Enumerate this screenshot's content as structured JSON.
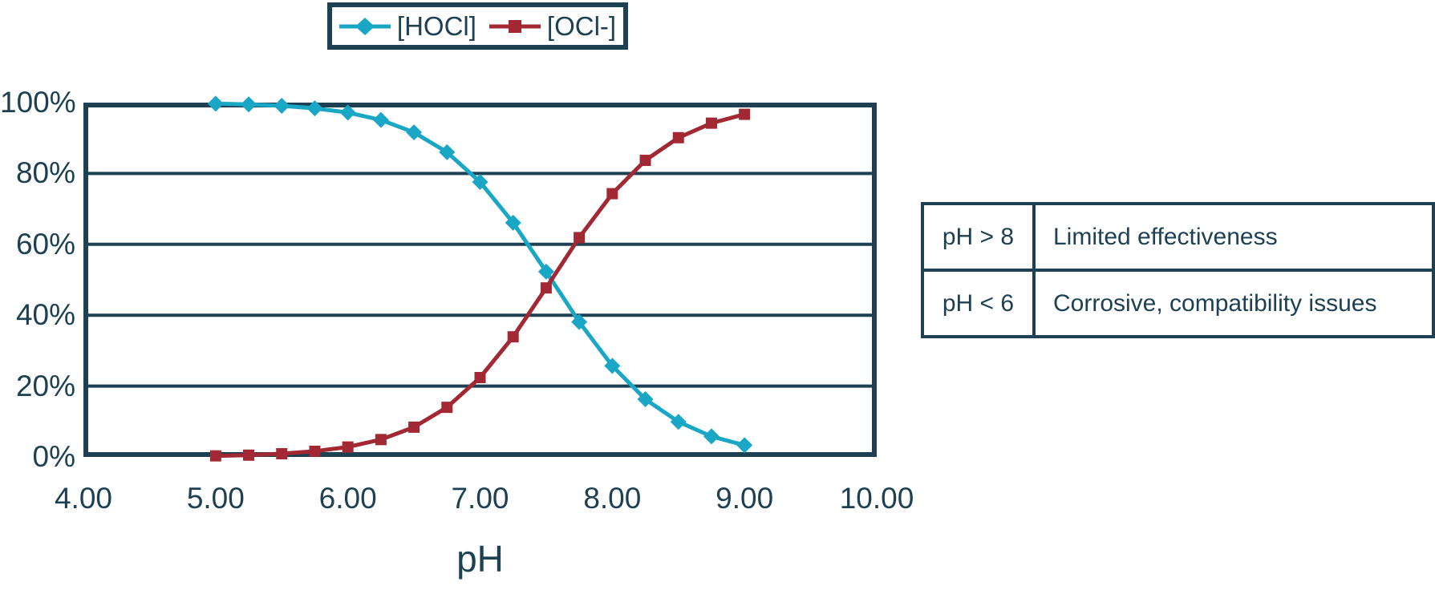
{
  "colors": {
    "navy": "#1d4152",
    "hocl": "#1aa7c6",
    "ocl": "#a22834",
    "background": "#ffffff"
  },
  "legend": {
    "items": [
      {
        "label": "[HOCl]",
        "marker": "diamond"
      },
      {
        "label": "[OCl-]",
        "marker": "square"
      }
    ]
  },
  "chart_data": {
    "type": "line",
    "title": "",
    "xlabel": "pH",
    "ylabel": "",
    "xlim": [
      4,
      10
    ],
    "ylim": [
      0,
      100
    ],
    "grid": "horizontal",
    "grid_lines": [
      20,
      40,
      60,
      80
    ],
    "legend_position": "top",
    "x": [
      5.0,
      5.25,
      5.5,
      5.75,
      6.0,
      6.25,
      6.5,
      6.75,
      7.0,
      7.25,
      7.5,
      7.75,
      8.0,
      8.25,
      8.5,
      8.75,
      9.0
    ],
    "series": [
      {
        "id": "hocl",
        "name": "[HOCl]",
        "marker": "diamond",
        "color": "#1aa7c6",
        "values": [
          99.7,
          99.5,
          99.1,
          98.4,
          97.2,
          95.1,
          91.6,
          86.0,
          77.6,
          66.1,
          52.3,
          38.1,
          25.7,
          16.3,
          9.9,
          5.8,
          3.3
        ]
      },
      {
        "id": "ocl",
        "name": "[OCl-]",
        "marker": "square",
        "color": "#a22834",
        "values": [
          0.3,
          0.5,
          0.9,
          1.6,
          2.8,
          4.9,
          8.4,
          14.0,
          22.4,
          33.9,
          47.7,
          61.9,
          74.3,
          83.7,
          90.1,
          94.2,
          96.7
        ]
      }
    ],
    "x_ticks": [
      {
        "label": "4.00",
        "value": 4
      },
      {
        "label": "5.00",
        "value": 5
      },
      {
        "label": "6.00",
        "value": 6
      },
      {
        "label": "7.00",
        "value": 7
      },
      {
        "label": "8.00",
        "value": 8
      },
      {
        "label": "9.00",
        "value": 9
      },
      {
        "label": "10.00",
        "value": 10
      }
    ],
    "y_ticks": [
      {
        "label": "100%",
        "value": 100
      },
      {
        "label": "80%",
        "value": 80
      },
      {
        "label": "60%",
        "value": 60
      },
      {
        "label": "40%",
        "value": 40
      },
      {
        "label": "20%",
        "value": 20
      },
      {
        "label": "0%",
        "value": 0
      }
    ]
  },
  "side_table": {
    "rows": [
      {
        "condition": "pH > 8",
        "note": "Limited effectiveness"
      },
      {
        "condition": "pH < 6",
        "note": "Corrosive, compatibility issues"
      }
    ]
  }
}
